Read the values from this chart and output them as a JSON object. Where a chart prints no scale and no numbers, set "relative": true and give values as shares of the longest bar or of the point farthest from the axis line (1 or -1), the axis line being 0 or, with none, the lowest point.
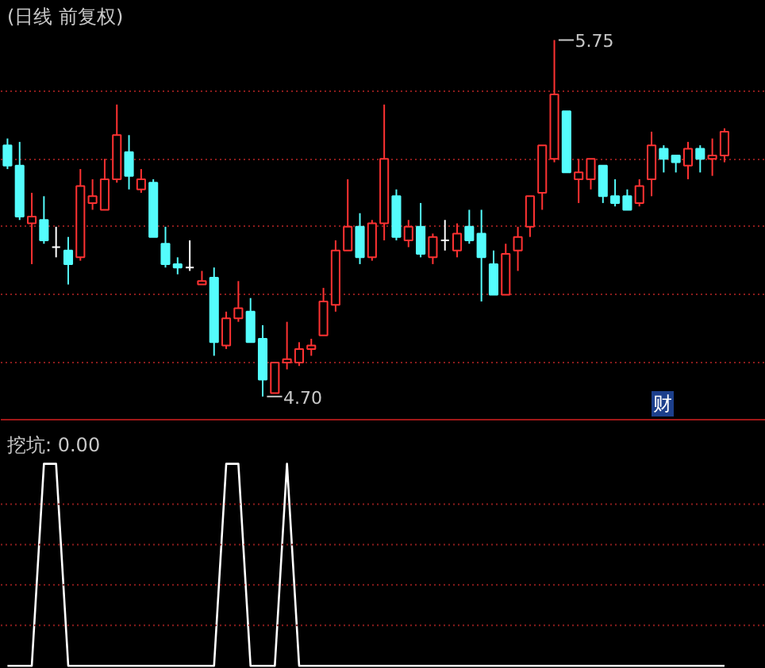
{
  "chart_data": [
    {
      "type": "candlestick",
      "title": "(日线 前复权)",
      "categories": [
        null,
        null,
        null,
        null,
        null,
        null,
        null,
        null,
        null,
        null,
        null,
        null,
        null,
        null,
        null,
        null,
        null,
        null,
        null,
        null,
        null,
        null,
        null,
        null,
        null,
        null,
        null,
        null,
        null,
        null,
        null,
        null,
        null,
        null,
        null,
        null,
        null,
        null,
        null,
        null,
        null,
        null,
        null,
        null,
        null,
        null,
        null,
        null,
        null,
        null,
        null,
        null,
        null,
        null,
        null,
        null,
        null,
        null,
        null,
        null
      ],
      "ohlc": [
        [
          5.44,
          5.46,
          5.37,
          5.38
        ],
        [
          5.38,
          5.45,
          5.22,
          5.23
        ],
        [
          5.21,
          5.3,
          5.09,
          5.23
        ],
        [
          5.22,
          5.29,
          5.15,
          5.16
        ],
        [
          5.14,
          5.2,
          5.11,
          5.14
        ],
        [
          5.13,
          5.17,
          5.03,
          5.09
        ],
        [
          5.11,
          5.37,
          5.1,
          5.32
        ],
        [
          5.27,
          5.34,
          5.25,
          5.29
        ],
        [
          5.25,
          5.4,
          5.25,
          5.34
        ],
        [
          5.34,
          5.56,
          5.33,
          5.47
        ],
        [
          5.42,
          5.47,
          5.31,
          5.35
        ],
        [
          5.31,
          5.37,
          5.3,
          5.34
        ],
        [
          5.33,
          5.34,
          5.17,
          5.17
        ],
        [
          5.15,
          5.2,
          5.08,
          5.09
        ],
        [
          5.09,
          5.11,
          5.06,
          5.08
        ],
        [
          5.08,
          5.16,
          5.07,
          5.08
        ],
        [
          5.03,
          5.07,
          5.03,
          5.04
        ],
        [
          5.05,
          5.08,
          4.82,
          4.86
        ],
        [
          4.85,
          4.95,
          4.84,
          4.93
        ],
        [
          4.93,
          5.04,
          4.92,
          4.96
        ],
        [
          4.95,
          4.99,
          4.86,
          4.86
        ],
        [
          4.87,
          4.91,
          4.7,
          4.75
        ],
        [
          4.71,
          4.8,
          4.71,
          4.8
        ],
        [
          4.8,
          4.92,
          4.78,
          4.81
        ],
        [
          4.8,
          4.86,
          4.79,
          4.84
        ],
        [
          4.84,
          4.87,
          4.82,
          4.85
        ],
        [
          4.88,
          5.02,
          4.88,
          4.98
        ],
        [
          4.97,
          5.16,
          4.95,
          5.13
        ],
        [
          5.13,
          5.34,
          5.13,
          5.2
        ],
        [
          5.2,
          5.24,
          5.09,
          5.11
        ],
        [
          5.11,
          5.22,
          5.1,
          5.21
        ],
        [
          5.21,
          5.56,
          5.16,
          5.4
        ],
        [
          5.29,
          5.31,
          5.16,
          5.17
        ],
        [
          5.16,
          5.22,
          5.14,
          5.2
        ],
        [
          5.2,
          5.27,
          5.11,
          5.12
        ],
        [
          5.11,
          5.18,
          5.09,
          5.17
        ],
        [
          5.16,
          5.22,
          5.13,
          5.16
        ],
        [
          5.13,
          5.21,
          5.11,
          5.18
        ],
        [
          5.2,
          5.25,
          5.15,
          5.16
        ],
        [
          5.18,
          5.25,
          4.98,
          5.11
        ],
        [
          5.09,
          5.13,
          5.0,
          5.0
        ],
        [
          5.0,
          5.15,
          5.0,
          5.12
        ],
        [
          5.13,
          5.2,
          5.07,
          5.17
        ],
        [
          5.2,
          5.29,
          5.17,
          5.29
        ],
        [
          5.3,
          5.44,
          5.25,
          5.44
        ],
        [
          5.4,
          5.75,
          5.39,
          5.59
        ],
        [
          5.54,
          5.54,
          5.36,
          5.36
        ],
        [
          5.34,
          5.4,
          5.27,
          5.36
        ],
        [
          5.34,
          5.4,
          5.31,
          5.4
        ],
        [
          5.38,
          5.38,
          5.27,
          5.29
        ],
        [
          5.29,
          5.34,
          5.26,
          5.27
        ],
        [
          5.29,
          5.31,
          5.25,
          5.25
        ],
        [
          5.27,
          5.34,
          5.26,
          5.32
        ],
        [
          5.34,
          5.48,
          5.29,
          5.44
        ],
        [
          5.43,
          5.44,
          5.36,
          5.4
        ],
        [
          5.41,
          5.41,
          5.36,
          5.39
        ],
        [
          5.38,
          5.45,
          5.34,
          5.43
        ],
        [
          5.43,
          5.44,
          5.36,
          5.4
        ],
        [
          5.4,
          5.46,
          5.35,
          5.41
        ],
        [
          5.41,
          5.49,
          5.39,
          5.48
        ]
      ],
      "colors": [
        "#54fcfc",
        "#54fcfc",
        "#ff3232",
        "#54fcfc",
        "#ffffff",
        "#54fcfc",
        "#ff3232",
        "#ff3232",
        "#ff3232",
        "#ff3232",
        "#54fcfc",
        "#ff3232",
        "#54fcfc",
        "#54fcfc",
        "#54fcfc",
        "#ffffff",
        "#ff3232",
        "#54fcfc",
        "#ff3232",
        "#ff3232",
        "#54fcfc",
        "#54fcfc",
        "#ff3232",
        "#ff3232",
        "#ff3232",
        "#ff3232",
        "#ff3232",
        "#ff3232",
        "#ff3232",
        "#54fcfc",
        "#ff3232",
        "#ff3232",
        "#54fcfc",
        "#ff3232",
        "#54fcfc",
        "#ff3232",
        "#ffffff",
        "#ff3232",
        "#54fcfc",
        "#54fcfc",
        "#54fcfc",
        "#ff3232",
        "#ff3232",
        "#ff3232",
        "#ff3232",
        "#ff3232",
        "#54fcfc",
        "#ff3232",
        "#ff3232",
        "#54fcfc",
        "#54fcfc",
        "#54fcfc",
        "#ff3232",
        "#ff3232",
        "#54fcfc",
        "#54fcfc",
        "#ff3232",
        "#54fcfc",
        "#ff3232",
        "#ff3232"
      ],
      "yticks": [
        {
          "value": 4.8,
          "label": null
        },
        {
          "value": 5.0,
          "label": null
        },
        {
          "value": 5.2,
          "label": null
        },
        {
          "value": 5.4,
          "label": null
        },
        {
          "value": 5.6,
          "label": null
        }
      ],
      "tick_labels": false,
      "grid": "y",
      "annotations": [
        "5.75",
        "4.70",
        "财"
      ]
    },
    {
      "type": "line",
      "title": "挖坑: 0.00",
      "categories": [
        null,
        null,
        null,
        null,
        null,
        null,
        null,
        null,
        null,
        null,
        null,
        null,
        null,
        null,
        null,
        null,
        null,
        null,
        null,
        null,
        null,
        null,
        null,
        null,
        null,
        null,
        null,
        null,
        null,
        null,
        null,
        null,
        null,
        null,
        null,
        null,
        null,
        null,
        null,
        null,
        null,
        null,
        null,
        null,
        null,
        null,
        null,
        null,
        null,
        null,
        null,
        null,
        null,
        null,
        null,
        null,
        null,
        null,
        null,
        null
      ],
      "relative": true,
      "tick_labels": false,
      "ref_lines": [
        {
          "axis": "y",
          "value": 0.2,
          "color": "#8c1c1c",
          "line_style": "dotted"
        },
        {
          "axis": "y",
          "value": 0.4,
          "color": "#8c1c1c",
          "line_style": "dotted"
        },
        {
          "axis": "y",
          "value": 0.6,
          "color": "#8c1c1c",
          "line_style": "dotted"
        },
        {
          "axis": "y",
          "value": 0.8,
          "color": "#8c1c1c",
          "line_style": "dotted"
        }
      ],
      "series": [
        {
          "color": "#ffffff",
          "values": [
            0,
            0,
            0,
            1,
            1,
            0,
            0,
            0,
            0,
            0,
            0,
            0,
            0,
            0,
            0,
            0,
            0,
            0,
            1,
            1,
            0,
            0,
            0,
            1,
            0,
            0,
            0,
            0,
            0,
            0,
            0,
            0,
            0,
            0,
            0,
            0,
            0,
            0,
            0,
            0,
            0,
            0,
            0,
            0,
            0,
            0,
            0,
            0,
            0,
            0,
            0,
            0,
            0,
            0,
            0,
            0,
            0,
            0,
            0,
            0
          ]
        }
      ]
    }
  ]
}
